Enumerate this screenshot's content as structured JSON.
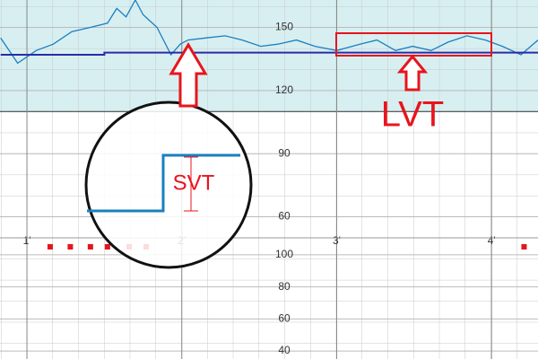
{
  "chart_data": [
    {
      "type": "line",
      "xlim": [
        0.826,
        4.3
      ],
      "xticks": [
        {
          "value": 1,
          "label": "1'"
        },
        {
          "value": 2,
          "label": "2'"
        },
        {
          "value": 3,
          "label": "3'"
        },
        {
          "value": 4,
          "label": "4'"
        }
      ],
      "ylim": [
        50,
        163
      ],
      "yticks": [
        60,
        90,
        120,
        150
      ],
      "band": [
        110,
        163
      ],
      "band_color": "#d7eff1",
      "series": [
        {
          "color": "#1a7fc1",
          "x": [
            0.83,
            0.94,
            1.06,
            1.17,
            1.29,
            1.41,
            1.52,
            1.58,
            1.64,
            1.7,
            1.75,
            1.84,
            1.93,
            1.99,
            2.04,
            2.16,
            2.28,
            2.39,
            2.51,
            2.62,
            2.74,
            2.86,
            3.0,
            3.15,
            3.26,
            3.38,
            3.49,
            3.61,
            3.72,
            3.84,
            3.96,
            4.07,
            4.19,
            4.3
          ],
          "values": [
            145,
            133,
            139,
            142,
            148,
            150,
            152,
            159,
            155,
            163,
            156,
            150,
            137,
            142,
            144,
            145,
            146,
            144,
            141,
            142,
            144,
            141,
            139,
            142,
            144,
            139,
            141,
            139,
            143,
            146,
            144,
            141,
            137,
            144
          ]
        },
        {
          "color": "#2b2ba8",
          "x": [
            0.83,
            1.5,
            1.5,
            4.3
          ],
          "values": [
            137,
            137,
            138,
            138
          ]
        }
      ],
      "annotations": [
        "SVT",
        "LVT"
      ]
    },
    {
      "type": "events",
      "ylim": [
        35,
        110.6
      ],
      "yticks": [
        40,
        60,
        80,
        100
      ],
      "markers": [
        1.15,
        1.28,
        1.41,
        1.52,
        1.66,
        1.77,
        4.21
      ],
      "marker_color": "#e8141c"
    }
  ]
}
